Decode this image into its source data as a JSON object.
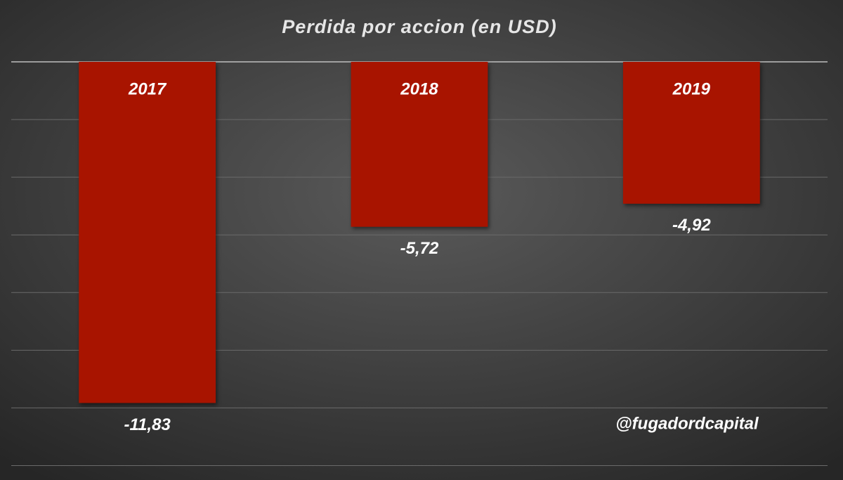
{
  "chart_data": {
    "type": "bar",
    "title": "Perdida  por  accion  (en USD)",
    "categories": [
      "2017",
      "2018",
      "2019"
    ],
    "values": [
      -11.83,
      -5.72,
      -4.92
    ],
    "value_labels": [
      "-11,83",
      "-5,72",
      "-4,92"
    ],
    "color": "#a81400",
    "ylim": [
      -14.5,
      0
    ],
    "yticks": [
      0,
      -2,
      -4,
      -6,
      -8,
      -10,
      -12,
      -14
    ],
    "grid": true,
    "annotation": "@fugadordcapital"
  }
}
